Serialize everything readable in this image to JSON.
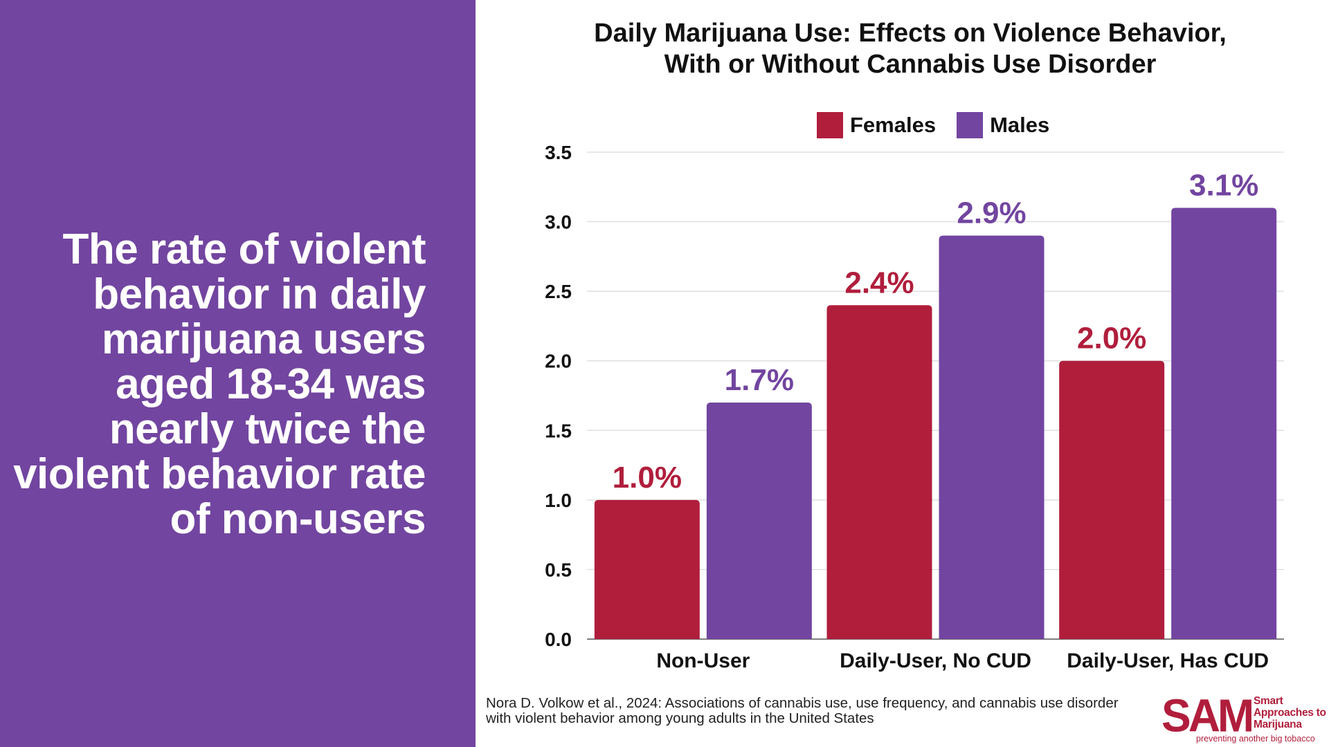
{
  "headline": "The rate of violent behavior in daily marijuana users aged 18-34 was nearly twice the violent behavior rate of non-users",
  "colors": {
    "panel": "#7245a0",
    "females": "#b01e3c",
    "males": "#7245a0",
    "grid": "#d9d9d9"
  },
  "chart_data": {
    "type": "bar",
    "title_lines": [
      "Daily Marijuana Use: Effects on Violence Behavior,",
      "With or Without Cannabis Use Disorder"
    ],
    "categories": [
      "Non-User",
      "Daily-User, No CUD",
      "Daily-User, Has CUD"
    ],
    "series": [
      {
        "name": "Females",
        "color": "#b01e3c",
        "values": [
          1.0,
          2.4,
          2.0
        ],
        "labels": [
          "1.0%",
          "2.4%",
          "2.0%"
        ]
      },
      {
        "name": "Males",
        "color": "#7245a0",
        "values": [
          1.7,
          2.9,
          3.1
        ],
        "labels": [
          "1.7%",
          "2.9%",
          "3.1%"
        ]
      }
    ],
    "y_ticks": [
      "0.0",
      "0.5",
      "1.0",
      "1.5",
      "2.0",
      "2.5",
      "3.0",
      "3.5"
    ],
    "ylim": [
      0,
      3.5
    ],
    "grid": true,
    "legend_position": "top-center"
  },
  "source": "Nora D. Volkow et al., 2024: Associations of cannabis use, use frequency, and cannabis use disorder with violent behavior among young adults in the United States",
  "logo": {
    "abbr": "SAM",
    "name_lines": [
      "Smart",
      "Approaches to",
      "Marijuana"
    ],
    "tagline": "preventing another big tobacco"
  }
}
